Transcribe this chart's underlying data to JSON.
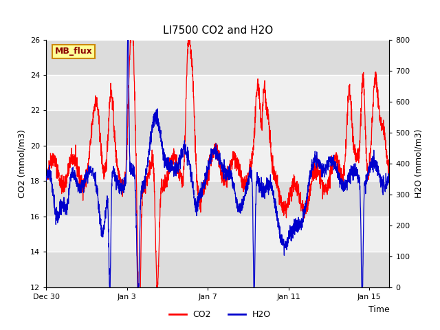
{
  "title": "LI7500 CO2 and H2O",
  "xlabel": "Time",
  "ylabel_left": "CO2 (mmol/m3)",
  "ylabel_right": "H2O (mmol/m3)",
  "co2_ylim": [
    12,
    26
  ],
  "h2o_ylim": [
    0,
    800
  ],
  "co2_yticks": [
    12,
    14,
    16,
    18,
    20,
    22,
    24,
    26
  ],
  "h2o_yticks": [
    0,
    100,
    200,
    300,
    400,
    500,
    600,
    700,
    800
  ],
  "background_color": "#ffffff",
  "plot_bg_color": "#f0f0f0",
  "band_color_dark": "#dcdcdc",
  "band_color_light": "#f0f0f0",
  "grid_color": "#ffffff",
  "co2_color": "#ff0000",
  "h2o_color": "#0000cc",
  "annotation_text": "MB_flux",
  "annotation_bg": "#ffff99",
  "annotation_border": "#cc8800",
  "legend_co2_label": "CO2",
  "legend_h2o_label": "H2O",
  "title_fontsize": 11,
  "axis_label_fontsize": 9,
  "tick_fontsize": 8,
  "legend_fontsize": 9,
  "line_width": 0.9
}
